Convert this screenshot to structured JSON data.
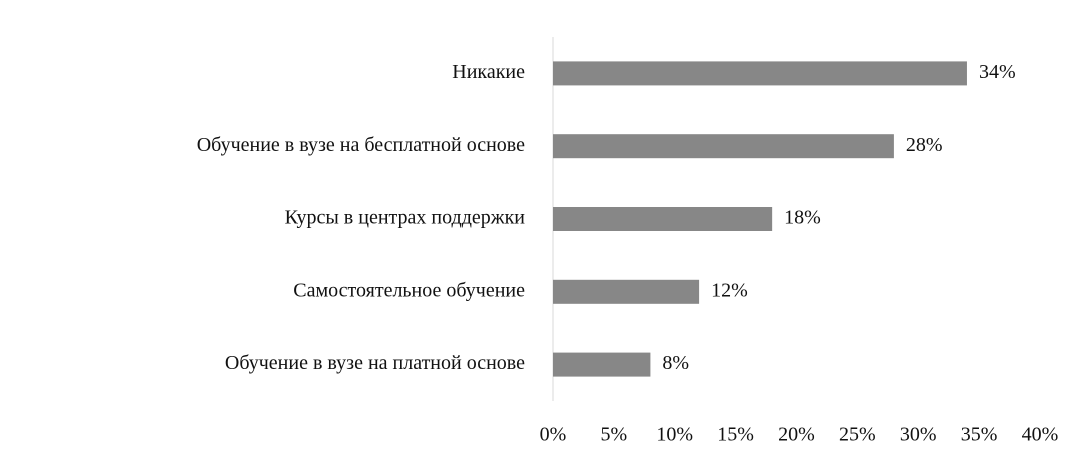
{
  "chart_data": {
    "type": "hbar",
    "categories": [
      "Никакие",
      "Обучение в вузе на бесплатной основе",
      "Курсы в центрах поддержки",
      "Самостоятельное обучение",
      "Обучение в вузе на платной основе"
    ],
    "values": [
      34,
      28,
      18,
      12,
      8
    ],
    "value_labels": [
      "34%",
      "28%",
      "18%",
      "12%",
      "8%"
    ],
    "color": "#878787",
    "xlim": [
      0,
      40
    ],
    "xticks": [
      {
        "value": 0,
        "label": "0%"
      },
      {
        "value": 5,
        "label": "5%"
      },
      {
        "value": 10,
        "label": "10%"
      },
      {
        "value": 15,
        "label": "15%"
      },
      {
        "value": 20,
        "label": "20%"
      },
      {
        "value": 25,
        "label": "25%"
      },
      {
        "value": 30,
        "label": "30%"
      },
      {
        "value": 35,
        "label": "35%"
      },
      {
        "value": 40,
        "label": "40%"
      }
    ],
    "grid": false
  }
}
